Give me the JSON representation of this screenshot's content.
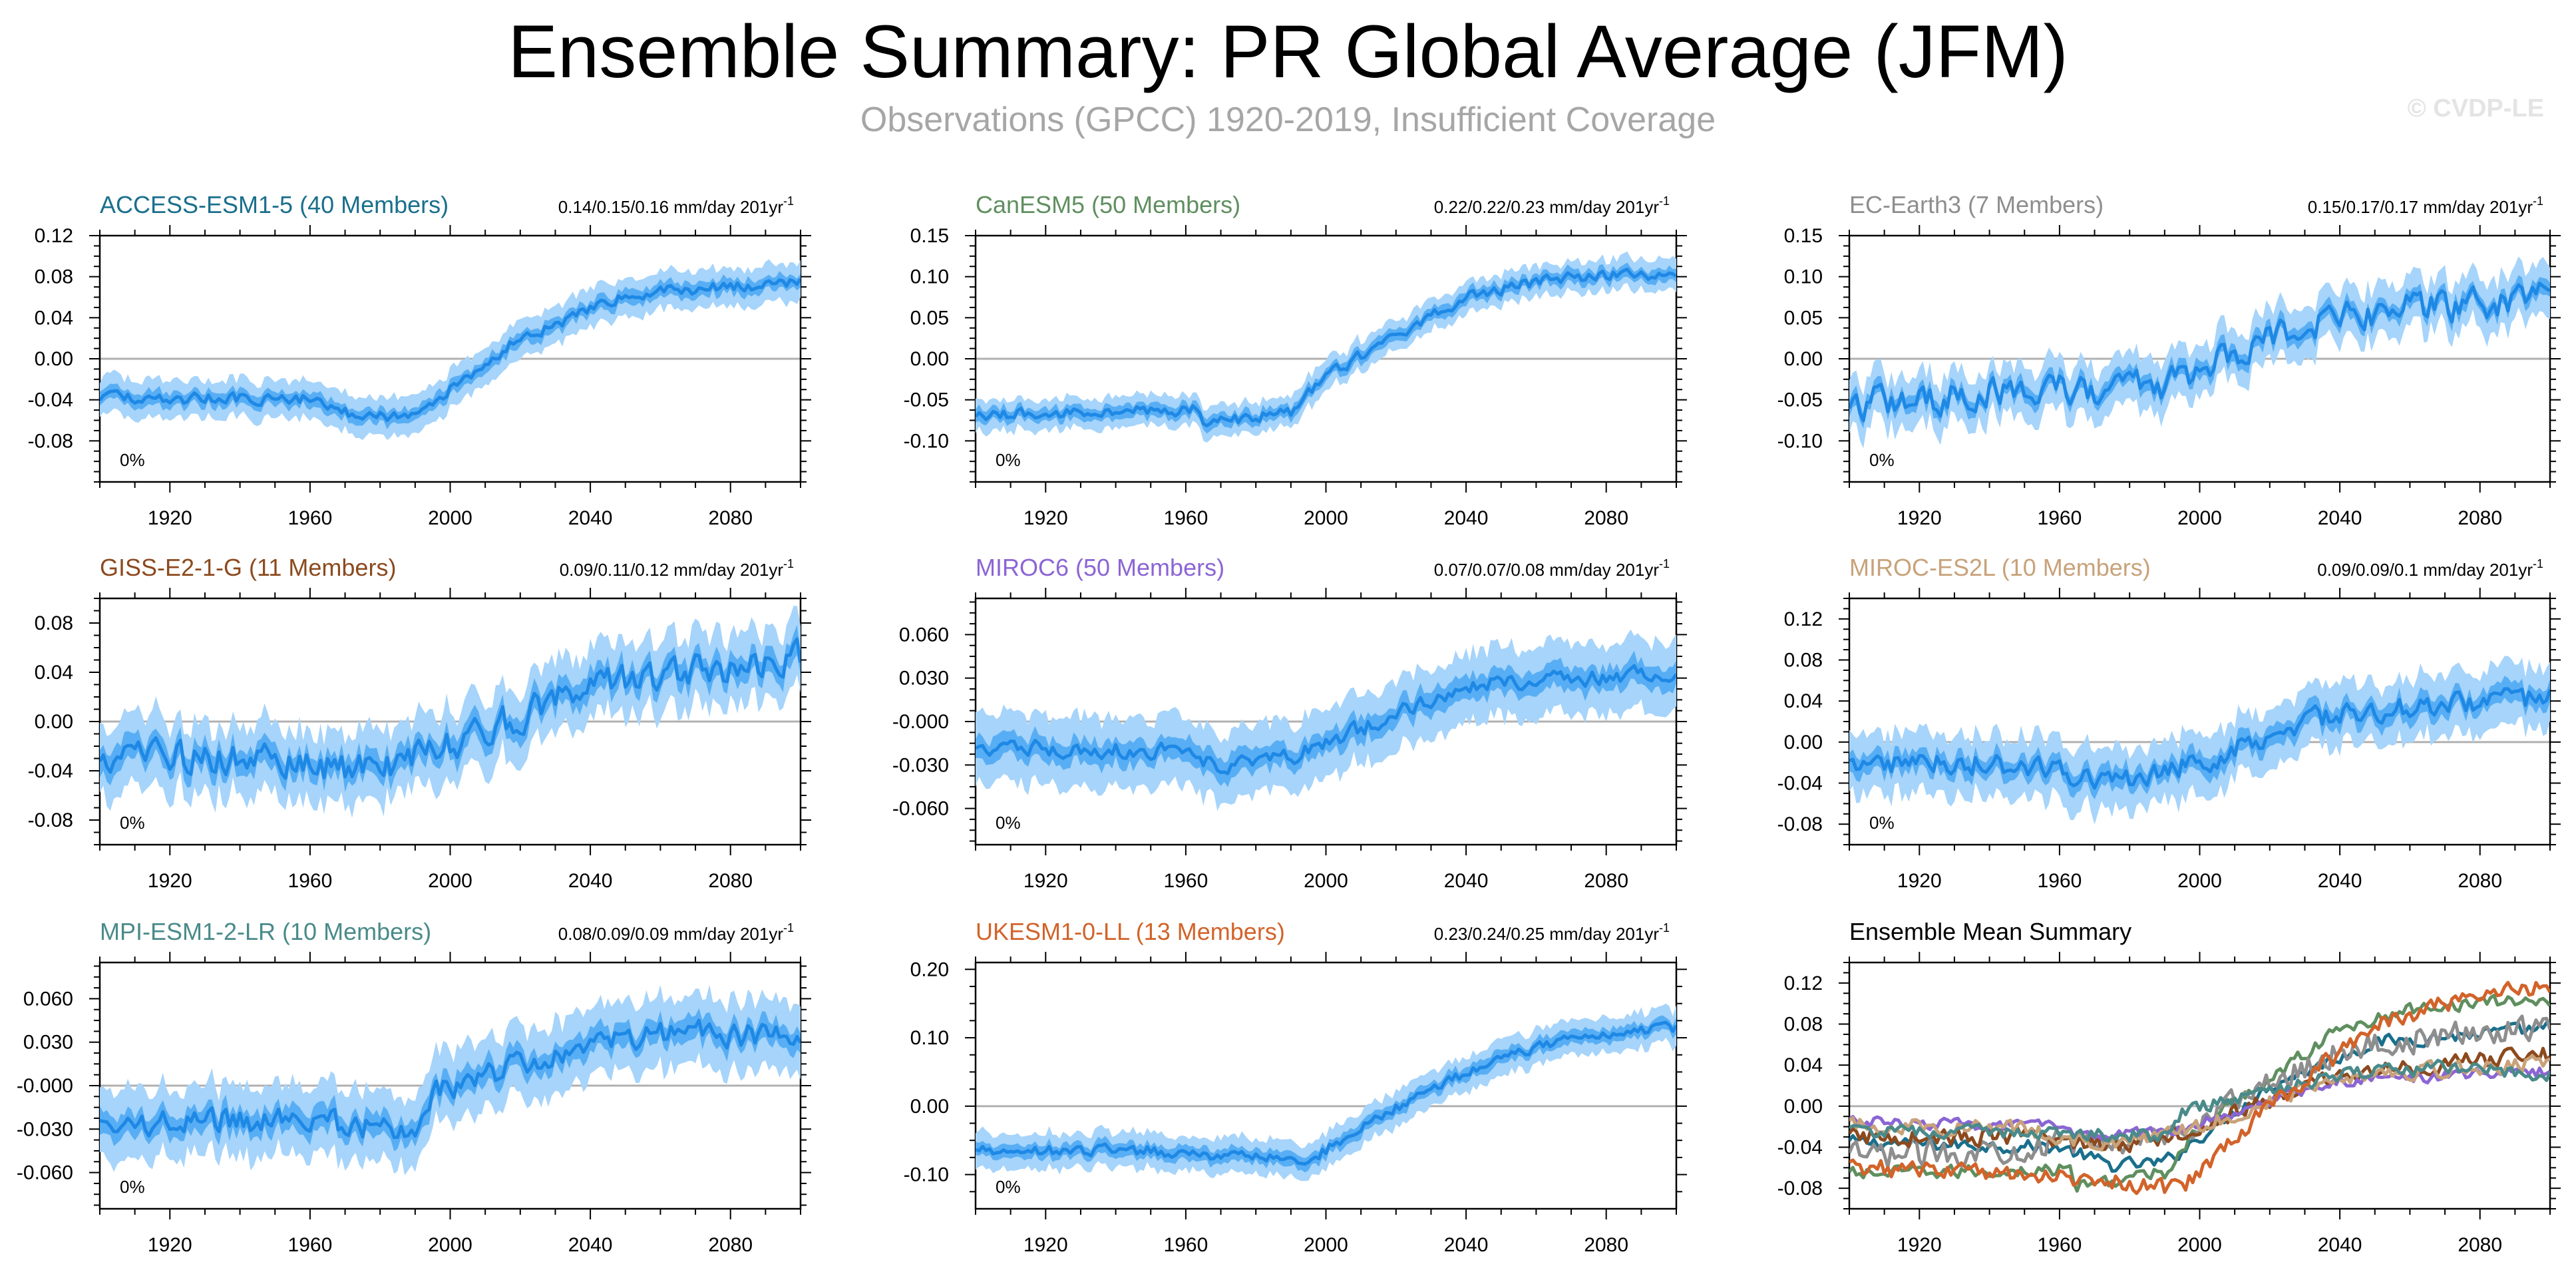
{
  "title": "Ensemble Summary: PR Global Average (JFM)",
  "subtitle": "Observations (GPCC) 1920-2019, Insufficient Coverage",
  "credit": "© CVDP-LE",
  "chart_data": [
    {
      "type": "line",
      "model": "ACCESS-ESM1-5",
      "members_label": "ACCESS-ESM1-5 (40 Members)",
      "color": "#1a6f8c",
      "trend_label": "0.14/0.15/0.16 mm/day 201yr",
      "trend_sup": "-1",
      "pct_label": "0%",
      "x": [
        1900,
        1960,
        1975,
        1990,
        2020,
        2050,
        2100
      ],
      "ylim": [
        -0.12,
        0.12
      ],
      "yticks": [
        0.12,
        0.08,
        0.04,
        0.0,
        -0.04,
        -0.08
      ],
      "yticklabels": [
        "0.12",
        "0.08",
        "0.04",
        "0.00",
        "-0.04",
        "-0.08"
      ],
      "keyframes": [
        [
          1900,
          -0.038
        ],
        [
          1960,
          -0.04
        ],
        [
          1975,
          -0.058
        ],
        [
          1990,
          -0.055
        ],
        [
          2020,
          0.02
        ],
        [
          2050,
          0.062
        ],
        [
          2100,
          0.076
        ]
      ],
      "mean_noise": 0.005,
      "ribbon_inner": 0.007,
      "ribbon_outer": 0.016,
      "outer_noise": 0.005
    },
    {
      "type": "line",
      "model": "CanESM5",
      "members_label": "CanESM5 (50 Members)",
      "color": "#5f8f5f",
      "trend_label": "0.22/0.22/0.23 mm/day 201yr",
      "trend_sup": "-1",
      "pct_label": "0%",
      "ylim": [
        -0.15,
        0.15
      ],
      "yticks": [
        0.15,
        0.1,
        0.05,
        0.0,
        -0.05,
        -0.1
      ],
      "yticklabels": [
        "0.15",
        "0.10",
        "0.05",
        "0.00",
        "-0.05",
        "-0.10"
      ],
      "keyframes": [
        [
          1900,
          -0.068
        ],
        [
          1963,
          -0.062
        ],
        [
          1965,
          -0.08
        ],
        [
          1990,
          -0.065
        ],
        [
          2000,
          -0.02
        ],
        [
          2040,
          0.075
        ],
        [
          2065,
          0.098
        ],
        [
          2100,
          0.104
        ]
      ],
      "mean_noise": 0.006,
      "ribbon_inner": 0.008,
      "ribbon_outer": 0.016,
      "outer_noise": 0.006
    },
    {
      "type": "line",
      "model": "EC-Earth3",
      "members_label": "EC-Earth3 (7 Members)",
      "color": "#8e8e8e",
      "trend_label": "0.15/0.17/0.17 mm/day 201yr",
      "trend_sup": "-1",
      "pct_label": "0%",
      "ylim": [
        -0.15,
        0.15
      ],
      "yticks": [
        0.15,
        0.1,
        0.05,
        0.0,
        -0.05,
        -0.1
      ],
      "yticklabels": [
        "0.15",
        "0.10",
        "0.05",
        "0.00",
        "-0.05",
        "-0.10"
      ],
      "keyframes": [
        [
          1900,
          -0.055
        ],
        [
          1950,
          -0.04
        ],
        [
          1990,
          -0.03
        ],
        [
          2010,
          0.005
        ],
        [
          2040,
          0.055
        ],
        [
          2100,
          0.072
        ]
      ],
      "mean_noise": 0.018,
      "ribbon_inner": 0.01,
      "ribbon_outer": 0.026,
      "outer_noise": 0.01
    },
    {
      "type": "line",
      "model": "GISS-E2-1-G",
      "members_label": "GISS-E2-1-G (11 Members)",
      "color": "#8c4a1e",
      "trend_label": "0.09/0.11/0.12 mm/day 201yr",
      "trend_sup": "-1",
      "pct_label": "0%",
      "ylim": [
        -0.1,
        0.1
      ],
      "yticks": [
        0.08,
        0.04,
        0.0,
        -0.04,
        -0.08
      ],
      "yticklabels": [
        "0.08",
        "0.04",
        "0.00",
        "-0.04",
        "-0.08"
      ],
      "keyframes": [
        [
          1900,
          -0.03
        ],
        [
          1950,
          -0.03
        ],
        [
          1975,
          -0.038
        ],
        [
          1995,
          -0.025
        ],
        [
          2040,
          0.03
        ],
        [
          2100,
          0.052
        ]
      ],
      "mean_noise": 0.012,
      "ribbon_inner": 0.01,
      "ribbon_outer": 0.024,
      "outer_noise": 0.01
    },
    {
      "type": "line",
      "model": "MIROC6",
      "members_label": "MIROC6 (50 Members)",
      "color": "#8b65d4",
      "trend_label": "0.07/0.07/0.08 mm/day 201yr",
      "trend_sup": "-1",
      "pct_label": "0%",
      "ylim": [
        -0.085,
        0.085
      ],
      "yticks": [
        0.06,
        0.03,
        0.0,
        -0.03,
        -0.06
      ],
      "yticklabels": [
        "0.060",
        "0.030",
        "-0.000",
        "-0.030",
        "-0.060"
      ],
      "keyframes": [
        [
          1900,
          -0.018
        ],
        [
          1960,
          -0.02
        ],
        [
          1968,
          -0.03
        ],
        [
          1990,
          -0.025
        ],
        [
          2040,
          0.025
        ],
        [
          2100,
          0.034
        ]
      ],
      "mean_noise": 0.005,
      "ribbon_inner": 0.008,
      "ribbon_outer": 0.02,
      "outer_noise": 0.008
    },
    {
      "type": "line",
      "model": "MIROC-ES2L",
      "members_label": "MIROC-ES2L (10 Members)",
      "color": "#c8a27a",
      "trend_label": "0.09/0.09/0.1 mm/day 201yr",
      "trend_sup": "-1",
      "pct_label": "0%",
      "ylim": [
        -0.1,
        0.14
      ],
      "yticks": [
        0.12,
        0.08,
        0.04,
        0.0,
        -0.04,
        -0.08
      ],
      "yticklabels": [
        "0.12",
        "0.08",
        "0.04",
        "0.00",
        "-0.04",
        "-0.08"
      ],
      "keyframes": [
        [
          1900,
          -0.018
        ],
        [
          1950,
          -0.022
        ],
        [
          1975,
          -0.04
        ],
        [
          2000,
          -0.02
        ],
        [
          2040,
          0.03
        ],
        [
          2100,
          0.042
        ]
      ],
      "mean_noise": 0.01,
      "ribbon_inner": 0.01,
      "ribbon_outer": 0.024,
      "outer_noise": 0.012
    },
    {
      "type": "line",
      "model": "MPI-ESM1-2-LR",
      "members_label": "MPI-ESM1-2-LR (10 Members)",
      "color": "#4a8a8a",
      "trend_label": "0.08/0.09/0.09 mm/day 201yr",
      "trend_sup": "-1",
      "pct_label": "0%",
      "ylim": [
        -0.085,
        0.085
      ],
      "yticks": [
        0.06,
        0.03,
        0.0,
        -0.03,
        -0.06
      ],
      "yticklabels": [
        "0.060",
        "0.030",
        "-0.000",
        "-0.030",
        "-0.060"
      ],
      "keyframes": [
        [
          1900,
          -0.025
        ],
        [
          1960,
          -0.025
        ],
        [
          1990,
          -0.03
        ],
        [
          1995,
          -0.005
        ],
        [
          2040,
          0.03
        ],
        [
          2070,
          0.038
        ],
        [
          2100,
          0.03
        ]
      ],
      "mean_noise": 0.008,
      "ribbon_inner": 0.008,
      "ribbon_outer": 0.02,
      "outer_noise": 0.008
    },
    {
      "type": "line",
      "model": "UKESM1-0-LL",
      "members_label": "UKESM1-0-LL (13 Members)",
      "color": "#d2632a",
      "trend_label": "0.23/0.24/0.25 mm/day 201yr",
      "trend_sup": "-1",
      "pct_label": "0%",
      "ylim": [
        -0.15,
        0.21
      ],
      "yticks": [
        0.2,
        0.1,
        0.0,
        -0.1
      ],
      "yticklabels": [
        "0.20",
        "0.10",
        "0.00",
        "-0.10"
      ],
      "keyframes": [
        [
          1900,
          -0.065
        ],
        [
          1950,
          -0.065
        ],
        [
          1995,
          -0.08
        ],
        [
          2010,
          -0.03
        ],
        [
          2050,
          0.075
        ],
        [
          2080,
          0.108
        ],
        [
          2100,
          0.115
        ]
      ],
      "mean_noise": 0.007,
      "ribbon_inner": 0.01,
      "ribbon_outer": 0.022,
      "outer_noise": 0.008
    },
    {
      "type": "line",
      "model": "Ensemble Mean Summary",
      "title": "Ensemble Mean Summary",
      "ylim": [
        -0.1,
        0.14
      ],
      "yticks": [
        0.12,
        0.08,
        0.04,
        0.0,
        -0.04,
        -0.08
      ],
      "yticklabels": [
        "0.12",
        "0.08",
        "0.04",
        "0.00",
        "-0.04",
        "-0.08"
      ],
      "series": [
        {
          "name": "ACCESS-ESM1-5",
          "color": "#1a6f8c",
          "keyframes": [
            [
              1900,
              -0.035
            ],
            [
              1960,
              -0.04
            ],
            [
              1975,
              -0.058
            ],
            [
              1990,
              -0.055
            ],
            [
              2020,
              0.02
            ],
            [
              2050,
              0.062
            ],
            [
              2100,
              0.076
            ]
          ],
          "noise": 0.006
        },
        {
          "name": "CanESM5",
          "color": "#5f8f5f",
          "keyframes": [
            [
              1900,
              -0.066
            ],
            [
              1963,
              -0.062
            ],
            [
              1965,
              -0.078
            ],
            [
              1990,
              -0.065
            ],
            [
              2000,
              -0.02
            ],
            [
              2040,
              0.075
            ],
            [
              2065,
              0.098
            ],
            [
              2100,
              0.104
            ]
          ],
          "noise": 0.006
        },
        {
          "name": "EC-Earth3",
          "color": "#8e8e8e",
          "keyframes": [
            [
              1900,
              -0.05
            ],
            [
              1950,
              -0.04
            ],
            [
              1990,
              -0.03
            ],
            [
              2010,
              0.005
            ],
            [
              2040,
              0.055
            ],
            [
              2100,
              0.08
            ]
          ],
          "noise": 0.012
        },
        {
          "name": "GISS-E2-1-G",
          "color": "#8c4a1e",
          "keyframes": [
            [
              1900,
              -0.03
            ],
            [
              1950,
              -0.03
            ],
            [
              1975,
              -0.038
            ],
            [
              1995,
              -0.025
            ],
            [
              2040,
              0.03
            ],
            [
              2100,
              0.052
            ]
          ],
          "noise": 0.008
        },
        {
          "name": "MIROC6",
          "color": "#8b65d4",
          "keyframes": [
            [
              1900,
              -0.015
            ],
            [
              1960,
              -0.02
            ],
            [
              1968,
              -0.03
            ],
            [
              1990,
              -0.025
            ],
            [
              2040,
              0.025
            ],
            [
              2100,
              0.034
            ]
          ],
          "noise": 0.005
        },
        {
          "name": "MIROC-ES2L",
          "color": "#c8a27a",
          "keyframes": [
            [
              1900,
              -0.018
            ],
            [
              1950,
              -0.022
            ],
            [
              1975,
              -0.04
            ],
            [
              2000,
              -0.02
            ],
            [
              2040,
              0.03
            ],
            [
              2100,
              0.042
            ]
          ],
          "noise": 0.007
        },
        {
          "name": "MPI-ESM1-2-LR",
          "color": "#4a8a8a",
          "keyframes": [
            [
              1900,
              -0.025
            ],
            [
              1960,
              -0.025
            ],
            [
              1990,
              -0.03
            ],
            [
              1995,
              -0.005
            ],
            [
              2040,
              0.03
            ],
            [
              2070,
              0.038
            ],
            [
              2100,
              0.03
            ]
          ],
          "noise": 0.006
        },
        {
          "name": "UKESM1-0-LL",
          "color": "#d2632a",
          "keyframes": [
            [
              1900,
              -0.06
            ],
            [
              1950,
              -0.065
            ],
            [
              1995,
              -0.08
            ],
            [
              2010,
              -0.03
            ],
            [
              2050,
              0.08
            ],
            [
              2080,
              0.11
            ],
            [
              2100,
              0.118
            ]
          ],
          "noise": 0.008
        }
      ]
    }
  ],
  "xaxis": {
    "range": [
      1900,
      2100
    ],
    "ticks": [
      1920,
      1960,
      2000,
      2040,
      2080
    ],
    "ticklabels": [
      "1920",
      "1960",
      "2000",
      "2040",
      "2080"
    ]
  },
  "colors": {
    "ribbon_outer": "#a6d4fb",
    "ribbon_inner": "#58aef4",
    "mean_line": "#1e88e5",
    "axis": "#000000",
    "zero_line": "#b0b0b0"
  }
}
